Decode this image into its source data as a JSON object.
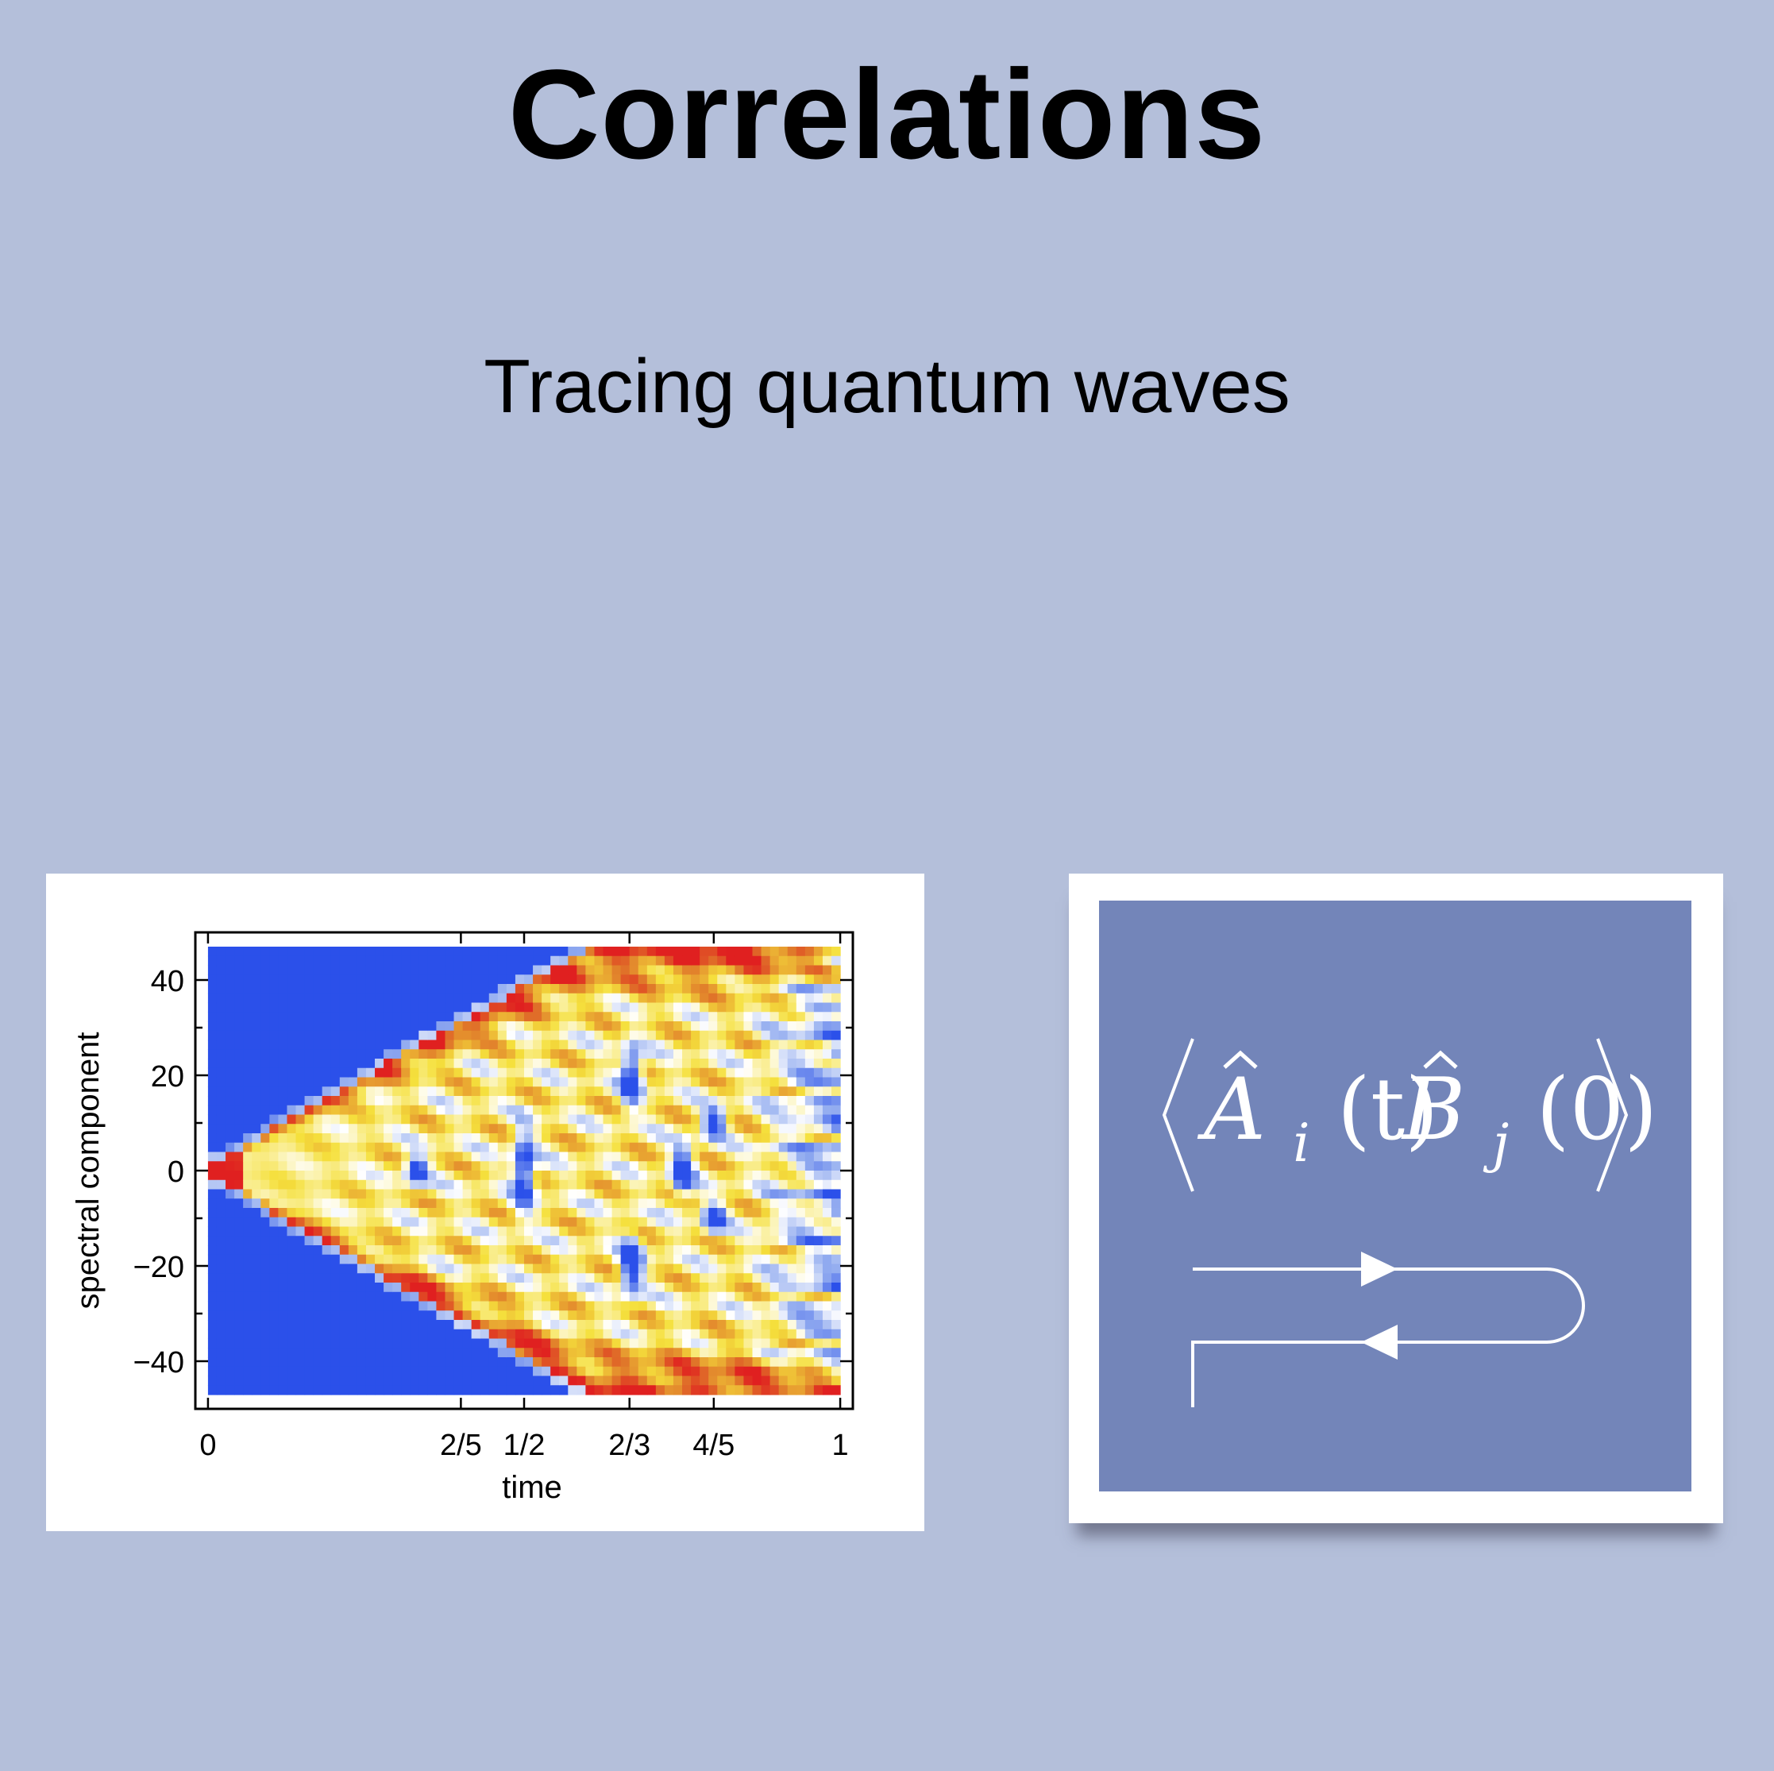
{
  "slide": {
    "title": "Correlations",
    "subtitle": "Tracing quantum waves"
  },
  "chart_data": {
    "type": "heatmap",
    "xlabel": "time",
    "ylabel": "spectral component",
    "xticks": [
      {
        "value": 0,
        "label": "0"
      },
      {
        "value": 0.4,
        "label": "2/5"
      },
      {
        "value": 0.5,
        "label": "1/2"
      },
      {
        "value": 0.6667,
        "label": "2/3"
      },
      {
        "value": 0.8,
        "label": "4/5"
      },
      {
        "value": 1,
        "label": "1"
      }
    ],
    "yticks": [
      {
        "value": 40,
        "label": "40"
      },
      {
        "value": 20,
        "label": "20"
      },
      {
        "value": 0,
        "label": "0"
      },
      {
        "value": -20,
        "label": "−20"
      },
      {
        "value": -40,
        "label": "−40"
      }
    ],
    "xlim": [
      -0.02,
      1.02
    ],
    "ylim": [
      -50,
      50
    ],
    "grid": false,
    "colors": {
      "background": "#2b50ea",
      "low": "#ffffff",
      "mid": "#f5e03c",
      "high": "#e07a2a",
      "peak": "#e02020"
    }
  },
  "formula": {
    "expression": "⟨Âi(t)B̂j(0)⟩",
    "open": "⟨",
    "A": "Â",
    "i": "i",
    "t": "(t)",
    "B": "B̂",
    "j": "j",
    "zero": "(0)",
    "close": "⟩",
    "background": "#7385b9"
  }
}
